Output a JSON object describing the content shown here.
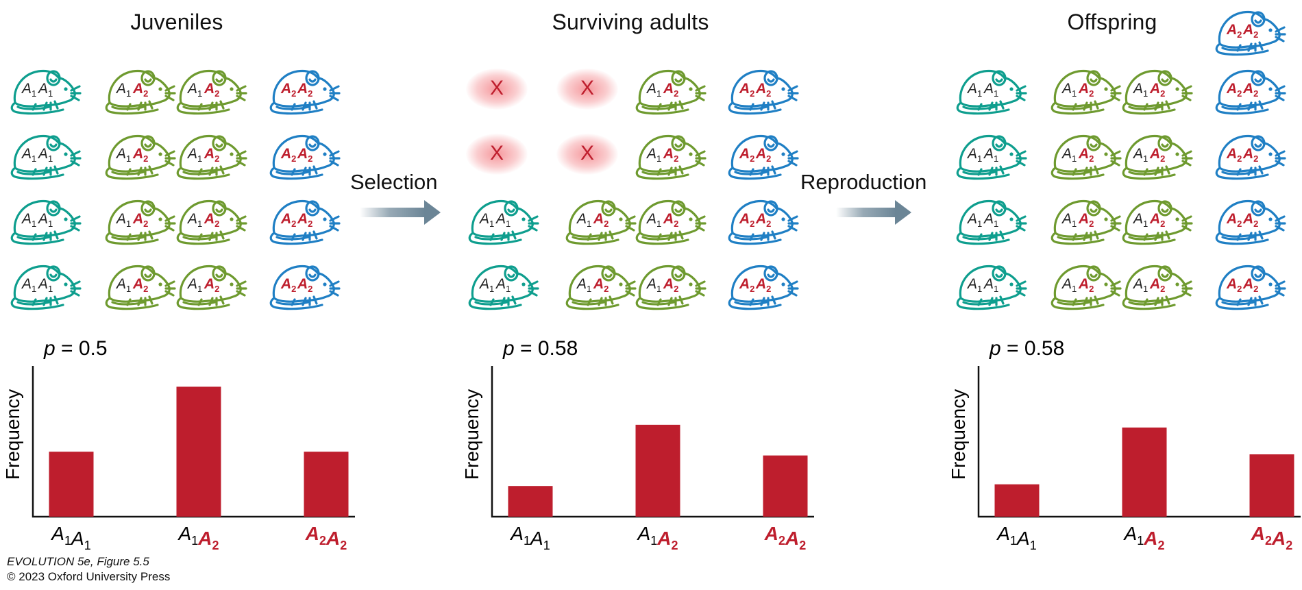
{
  "panels": [
    {
      "title": "Juveniles"
    },
    {
      "title": "Surviving adults"
    },
    {
      "title": "Offspring"
    }
  ],
  "arrows": [
    {
      "label": "Selection"
    },
    {
      "label": "Reproduction"
    }
  ],
  "genotypes": {
    "A1A1": {
      "a": "A",
      "as": "1",
      "b": "A",
      "bs": "1",
      "color": "#0e9e8e"
    },
    "A1A2": {
      "a": "A",
      "as": "1",
      "b": "A",
      "bs": "2",
      "color": "#6e9a2f"
    },
    "A2A2": {
      "a": "A",
      "as": "2",
      "b": "A",
      "bs": "2",
      "color": "#1f7fc4"
    }
  },
  "colors": {
    "bar": "#be1e2d",
    "allele2": "#be1e2d",
    "arrow": "#6b8596"
  },
  "dead_marker": "X",
  "chart_data": [
    {
      "type": "bar",
      "annotation": "p = 0.5",
      "ylabel": "Frequency",
      "categories": [
        "A1A1",
        "A1A2",
        "A2A2"
      ],
      "values": [
        0.25,
        0.5,
        0.25
      ],
      "ylim": [
        0,
        0.58
      ]
    },
    {
      "type": "bar",
      "annotation": "p = 0.58",
      "ylabel": "Frequency",
      "categories": [
        "A1A1",
        "A1A2",
        "A2A2"
      ],
      "values": [
        0.167,
        0.5,
        0.333
      ],
      "ylim": [
        0,
        0.82
      ]
    },
    {
      "type": "bar",
      "annotation": "p = 0.58",
      "ylabel": "Frequency",
      "categories": [
        "A1A1",
        "A1A2",
        "A2A2"
      ],
      "values": [
        0.176,
        0.485,
        0.339
      ],
      "ylim": [
        0,
        0.82
      ]
    }
  ],
  "credit": {
    "line1": "EVOLUTION 5e, Figure 5.5",
    "line2": "© 2023 Oxford University Press"
  }
}
